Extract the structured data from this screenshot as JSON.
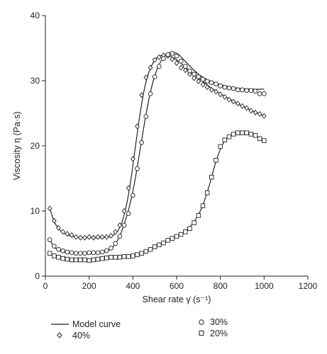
{
  "chart_data": {
    "type": "scatter",
    "xlabel": "Shear rate γ̇ (s⁻¹)",
    "ylabel": "Viscosity η (Pa·s)",
    "xlim": [
      0,
      1200
    ],
    "ylim": [
      0,
      40
    ],
    "xticks": [
      0,
      200,
      400,
      600,
      800,
      1000,
      1200
    ],
    "yticks": [
      0,
      10,
      20,
      30,
      40
    ],
    "grid": false,
    "legend_position": "bottom",
    "legend": [
      {
        "label": "Model curve",
        "marker": "line"
      },
      {
        "label": "30%",
        "marker": "circle"
      },
      {
        "label": "40%",
        "marker": "diamond"
      },
      {
        "label": "20%",
        "marker": "square"
      }
    ],
    "series": [
      {
        "name": "40%",
        "marker": "diamond",
        "points": [
          [
            20,
            10.4
          ],
          [
            40,
            8.5
          ],
          [
            60,
            7.4
          ],
          [
            80,
            6.8
          ],
          [
            100,
            6.5
          ],
          [
            120,
            6.3
          ],
          [
            140,
            6.0
          ],
          [
            160,
            5.9
          ],
          [
            180,
            5.9
          ],
          [
            200,
            6.0
          ],
          [
            220,
            5.9
          ],
          [
            240,
            6.0
          ],
          [
            260,
            6.0
          ],
          [
            280,
            6.0
          ],
          [
            300,
            6.2
          ],
          [
            320,
            6.8
          ],
          [
            340,
            7.8
          ],
          [
            360,
            10.0
          ],
          [
            380,
            13.5
          ],
          [
            400,
            18.0
          ],
          [
            420,
            23.0
          ],
          [
            440,
            27.8
          ],
          [
            460,
            30.5
          ],
          [
            480,
            32.0
          ],
          [
            500,
            33.2
          ],
          [
            520,
            33.6
          ],
          [
            540,
            33.9
          ],
          [
            560,
            33.8
          ],
          [
            580,
            33.3
          ],
          [
            600,
            32.7
          ],
          [
            620,
            32.0
          ],
          [
            640,
            31.6
          ],
          [
            660,
            31.0
          ],
          [
            680,
            30.4
          ],
          [
            700,
            29.9
          ],
          [
            720,
            29.4
          ],
          [
            740,
            29.0
          ],
          [
            760,
            28.6
          ],
          [
            780,
            28.3
          ],
          [
            800,
            27.9
          ],
          [
            820,
            27.5
          ],
          [
            840,
            27.1
          ],
          [
            860,
            26.8
          ],
          [
            880,
            26.5
          ],
          [
            900,
            26.1
          ],
          [
            920,
            25.8
          ],
          [
            940,
            25.4
          ],
          [
            960,
            25.1
          ],
          [
            980,
            24.9
          ],
          [
            1000,
            24.6
          ]
        ],
        "model": [
          [
            20,
            10.4
          ],
          [
            40,
            8.4
          ],
          [
            60,
            7.3
          ],
          [
            80,
            6.7
          ],
          [
            100,
            6.3
          ],
          [
            140,
            6.0
          ],
          [
            200,
            5.9
          ],
          [
            260,
            5.9
          ],
          [
            300,
            6.1
          ],
          [
            330,
            6.9
          ],
          [
            350,
            8.3
          ],
          [
            370,
            10.8
          ],
          [
            390,
            14.6
          ],
          [
            410,
            19.5
          ],
          [
            430,
            24.3
          ],
          [
            450,
            28.3
          ],
          [
            470,
            31.0
          ],
          [
            490,
            32.6
          ],
          [
            510,
            33.5
          ],
          [
            530,
            33.9
          ],
          [
            550,
            34.0
          ],
          [
            570,
            33.8
          ],
          [
            600,
            33.2
          ],
          [
            650,
            31.8
          ],
          [
            700,
            30.4
          ],
          [
            750,
            29.1
          ],
          [
            800,
            28.0
          ],
          [
            850,
            27.0
          ],
          [
            900,
            26.1
          ],
          [
            950,
            25.3
          ],
          [
            1000,
            24.6
          ]
        ]
      },
      {
        "name": "30%",
        "marker": "circle",
        "points": [
          [
            20,
            5.6
          ],
          [
            40,
            4.6
          ],
          [
            60,
            4.1
          ],
          [
            80,
            3.9
          ],
          [
            100,
            3.7
          ],
          [
            120,
            3.6
          ],
          [
            140,
            3.5
          ],
          [
            160,
            3.5
          ],
          [
            180,
            3.5
          ],
          [
            200,
            3.6
          ],
          [
            220,
            3.6
          ],
          [
            240,
            3.6
          ],
          [
            260,
            3.7
          ],
          [
            280,
            3.9
          ],
          [
            300,
            4.3
          ],
          [
            320,
            5.0
          ],
          [
            340,
            6.1
          ],
          [
            360,
            7.8
          ],
          [
            380,
            9.6
          ],
          [
            400,
            12.4
          ],
          [
            420,
            16.5
          ],
          [
            440,
            20.5
          ],
          [
            460,
            24.5
          ],
          [
            480,
            28.0
          ],
          [
            500,
            30.6
          ],
          [
            520,
            32.2
          ],
          [
            540,
            33.4
          ],
          [
            560,
            34.0
          ],
          [
            580,
            34.2
          ],
          [
            600,
            33.8
          ],
          [
            620,
            33.0
          ],
          [
            640,
            32.2
          ],
          [
            660,
            31.5
          ],
          [
            680,
            31.0
          ],
          [
            700,
            30.6
          ],
          [
            720,
            30.2
          ],
          [
            740,
            29.9
          ],
          [
            760,
            29.7
          ],
          [
            780,
            29.5
          ],
          [
            800,
            29.2
          ],
          [
            820,
            29.0
          ],
          [
            840,
            28.9
          ],
          [
            860,
            28.8
          ],
          [
            880,
            28.6
          ],
          [
            900,
            28.6
          ],
          [
            920,
            28.5
          ],
          [
            940,
            28.5
          ],
          [
            960,
            28.4
          ],
          [
            980,
            28.0
          ],
          [
            1000,
            28.0
          ]
        ],
        "model": [
          [
            20,
            5.6
          ],
          [
            40,
            4.5
          ],
          [
            60,
            4.0
          ],
          [
            80,
            3.7
          ],
          [
            120,
            3.5
          ],
          [
            180,
            3.4
          ],
          [
            240,
            3.5
          ],
          [
            280,
            3.8
          ],
          [
            310,
            4.5
          ],
          [
            330,
            5.5
          ],
          [
            350,
            7.0
          ],
          [
            370,
            9.0
          ],
          [
            390,
            11.5
          ],
          [
            410,
            14.8
          ],
          [
            430,
            18.8
          ],
          [
            450,
            22.9
          ],
          [
            470,
            26.6
          ],
          [
            490,
            29.6
          ],
          [
            510,
            31.7
          ],
          [
            530,
            33.1
          ],
          [
            550,
            33.9
          ],
          [
            570,
            34.3
          ],
          [
            590,
            34.3
          ],
          [
            610,
            34.0
          ],
          [
            650,
            32.6
          ],
          [
            700,
            31.0
          ],
          [
            750,
            30.0
          ],
          [
            800,
            29.4
          ],
          [
            850,
            29.0
          ],
          [
            900,
            28.8
          ],
          [
            950,
            28.7
          ],
          [
            1000,
            28.7
          ]
        ]
      },
      {
        "name": "20%",
        "marker": "square",
        "points": [
          [
            20,
            3.5
          ],
          [
            40,
            3.1
          ],
          [
            60,
            2.9
          ],
          [
            80,
            2.7
          ],
          [
            100,
            2.6
          ],
          [
            120,
            2.5
          ],
          [
            140,
            2.5
          ],
          [
            160,
            2.5
          ],
          [
            180,
            2.5
          ],
          [
            200,
            2.4
          ],
          [
            220,
            2.5
          ],
          [
            240,
            2.6
          ],
          [
            260,
            2.7
          ],
          [
            280,
            2.8
          ],
          [
            300,
            2.9
          ],
          [
            320,
            2.9
          ],
          [
            340,
            2.9
          ],
          [
            360,
            3.0
          ],
          [
            380,
            3.0
          ],
          [
            400,
            3.1
          ],
          [
            420,
            3.3
          ],
          [
            440,
            3.5
          ],
          [
            460,
            3.8
          ],
          [
            480,
            4.1
          ],
          [
            500,
            4.5
          ],
          [
            520,
            4.8
          ],
          [
            540,
            5.1
          ],
          [
            560,
            5.5
          ],
          [
            580,
            5.8
          ],
          [
            600,
            6.1
          ],
          [
            620,
            6.4
          ],
          [
            640,
            6.8
          ],
          [
            660,
            7.3
          ],
          [
            680,
            8.2
          ],
          [
            700,
            9.3
          ],
          [
            720,
            10.8
          ],
          [
            740,
            12.8
          ],
          [
            760,
            15.2
          ],
          [
            780,
            17.8
          ],
          [
            800,
            19.9
          ],
          [
            820,
            20.9
          ],
          [
            840,
            21.4
          ],
          [
            860,
            21.8
          ],
          [
            880,
            22.0
          ],
          [
            900,
            22.0
          ],
          [
            920,
            22.0
          ],
          [
            940,
            21.8
          ],
          [
            960,
            21.6
          ],
          [
            980,
            21.1
          ],
          [
            1000,
            20.8
          ]
        ],
        "model": [
          [
            20,
            3.5
          ],
          [
            50,
            2.9
          ],
          [
            100,
            2.5
          ],
          [
            150,
            2.4
          ],
          [
            200,
            2.4
          ],
          [
            250,
            2.6
          ],
          [
            300,
            2.8
          ],
          [
            350,
            3.0
          ],
          [
            400,
            3.2
          ],
          [
            450,
            3.8
          ],
          [
            500,
            4.5
          ],
          [
            550,
            5.3
          ],
          [
            600,
            6.1
          ],
          [
            650,
            7.2
          ],
          [
            690,
            8.9
          ],
          [
            720,
            10.9
          ],
          [
            750,
            14.0
          ],
          [
            780,
            17.6
          ],
          [
            810,
            20.2
          ],
          [
            840,
            21.5
          ],
          [
            870,
            22.0
          ],
          [
            900,
            22.0
          ],
          [
            930,
            21.8
          ],
          [
            960,
            21.5
          ],
          [
            1000,
            20.8
          ]
        ]
      }
    ]
  }
}
